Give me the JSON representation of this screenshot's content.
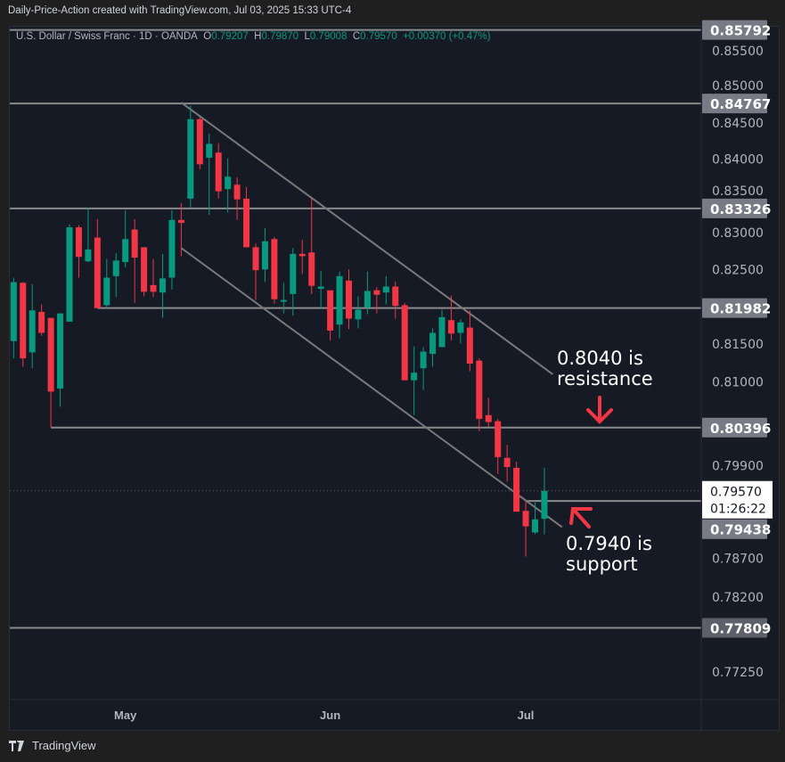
{
  "caption": "Daily-Price-Action created with TradingView.com, Jul 03, 2025 15:33 UTC-4",
  "legend": {
    "symbol": "U.S. Dollar / Swiss Franc · 1D · OANDA",
    "o_label": "O",
    "o": "0.79207",
    "h_label": "H",
    "h": "0.79870",
    "l_label": "L",
    "l": "0.79008",
    "c_label": "C",
    "c": "0.79570",
    "change": "+0.00370 (+0.47%)"
  },
  "footer": {
    "brand": "TradingView",
    "logo_icon": "tradingview-logo-icon"
  },
  "colors": {
    "up": "#089981",
    "down": "#f23645",
    "level_line": "#8a8a8a",
    "annotation_arrow": "#f23645",
    "background": "#161a25"
  },
  "chart_data": {
    "type": "candlestick",
    "title": "",
    "y_scale": "log",
    "ylim": [
      0.7705,
      0.8625
    ],
    "grid": false,
    "price_ticks": [
      "0.85500",
      "0.85000",
      "0.84500",
      "0.84000",
      "0.83500",
      "0.83000",
      "0.82500",
      "0.81500",
      "0.81000",
      "0.79900",
      "0.78700",
      "0.78200",
      "0.77250"
    ],
    "x_ticks": [
      {
        "label": "May",
        "index": 12
      },
      {
        "label": "Jun",
        "index": 34
      },
      {
        "label": "Jul",
        "index": 55
      }
    ],
    "candles": [
      [
        0.8154,
        0.8239,
        0.8131,
        0.8233
      ],
      [
        0.8232,
        0.8233,
        0.812,
        0.8131
      ],
      [
        0.8139,
        0.823,
        0.8118,
        0.8195
      ],
      [
        0.8193,
        0.8203,
        0.8161,
        0.8165
      ],
      [
        0.8185,
        0.8185,
        0.804,
        0.8087
      ],
      [
        0.8091,
        0.8191,
        0.8067,
        0.8191
      ],
      [
        0.818,
        0.8311,
        0.818,
        0.8307
      ],
      [
        0.8307,
        0.831,
        0.8239,
        0.8267
      ],
      [
        0.8261,
        0.8334,
        0.826,
        0.8277
      ],
      [
        0.8293,
        0.8318,
        0.8198,
        0.8198
      ],
      [
        0.8202,
        0.8264,
        0.8197,
        0.8239
      ],
      [
        0.8241,
        0.8272,
        0.8213,
        0.8262
      ],
      [
        0.826,
        0.833,
        0.8253,
        0.8291
      ],
      [
        0.8304,
        0.8318,
        0.8205,
        0.8266
      ],
      [
        0.828,
        0.828,
        0.8214,
        0.822
      ],
      [
        0.8229,
        0.8264,
        0.8213,
        0.822
      ],
      [
        0.8219,
        0.8271,
        0.8185,
        0.8238
      ],
      [
        0.8239,
        0.833,
        0.8223,
        0.8317
      ],
      [
        0.8317,
        0.834,
        0.8268,
        0.8313
      ],
      [
        0.8346,
        0.8474,
        0.8333,
        0.8455
      ],
      [
        0.8455,
        0.8458,
        0.8386,
        0.8393
      ],
      [
        0.8402,
        0.8435,
        0.8324,
        0.8421
      ],
      [
        0.8409,
        0.8422,
        0.8346,
        0.8356
      ],
      [
        0.8359,
        0.8401,
        0.8327,
        0.8376
      ],
      [
        0.8365,
        0.8375,
        0.8317,
        0.8345
      ],
      [
        0.8346,
        0.8362,
        0.828,
        0.828
      ],
      [
        0.828,
        0.8285,
        0.8209,
        0.8249
      ],
      [
        0.825,
        0.8306,
        0.8233,
        0.8288
      ],
      [
        0.8291,
        0.8294,
        0.8204,
        0.821
      ],
      [
        0.8208,
        0.8232,
        0.8191,
        0.8209
      ],
      [
        0.8217,
        0.8279,
        0.8188,
        0.8271
      ],
      [
        0.8271,
        0.829,
        0.8244,
        0.8268
      ],
      [
        0.8273,
        0.8346,
        0.8217,
        0.8228
      ],
      [
        0.8224,
        0.8248,
        0.8198,
        0.8227
      ],
      [
        0.8222,
        0.8222,
        0.8155,
        0.8168
      ],
      [
        0.8176,
        0.8247,
        0.8158,
        0.8241
      ],
      [
        0.8235,
        0.825,
        0.817,
        0.8184
      ],
      [
        0.8183,
        0.8214,
        0.8171,
        0.8196
      ],
      [
        0.8199,
        0.8247,
        0.819,
        0.8221
      ],
      [
        0.8222,
        0.8226,
        0.8191,
        0.8216
      ],
      [
        0.8219,
        0.8241,
        0.8203,
        0.8227
      ],
      [
        0.8227,
        0.8234,
        0.8184,
        0.8201
      ],
      [
        0.8202,
        0.8205,
        0.8102,
        0.8102
      ],
      [
        0.8102,
        0.8147,
        0.8056,
        0.8112
      ],
      [
        0.8118,
        0.8146,
        0.8089,
        0.814
      ],
      [
        0.8137,
        0.8171,
        0.812,
        0.8165
      ],
      [
        0.8146,
        0.8196,
        0.8146,
        0.8186
      ],
      [
        0.8182,
        0.8215,
        0.8155,
        0.8164
      ],
      [
        0.8165,
        0.8183,
        0.8151,
        0.8179
      ],
      [
        0.8172,
        0.8195,
        0.8114,
        0.8124
      ],
      [
        0.8128,
        0.8131,
        0.8035,
        0.8051
      ],
      [
        0.8056,
        0.8079,
        0.8041,
        0.8047
      ],
      [
        0.8048,
        0.8051,
        0.7979,
        0.8001
      ],
      [
        0.8,
        0.8017,
        0.7969,
        0.7988
      ],
      [
        0.7987,
        0.7995,
        0.793,
        0.793
      ],
      [
        0.7931,
        0.7943,
        0.7872,
        0.7911
      ],
      [
        0.7903,
        0.7942,
        0.7901,
        0.792
      ],
      [
        0.79207,
        0.7987,
        0.79008,
        0.7957
      ]
    ],
    "candle_fields": [
      "open",
      "high",
      "low",
      "close"
    ],
    "levels": [
      {
        "price": 0.85792,
        "label": "0.85792",
        "from_index": 0
      },
      {
        "price": 0.84767,
        "label": "0.84767",
        "from_index": 0
      },
      {
        "price": 0.83326,
        "label": "0.83326",
        "from_index": 0
      },
      {
        "price": 0.81982,
        "label": "0.81982",
        "from_index": 9
      },
      {
        "price": 0.80396,
        "label": "0.80396",
        "from_index": 4
      },
      {
        "price": 0.79438,
        "label": "0.79438",
        "from_index": 55
      },
      {
        "price": 0.77809,
        "label": "0.77809",
        "from_index": 0
      }
    ],
    "trendlines": [
      {
        "from": [
          18,
          0.8478
        ],
        "to": [
          57.9,
          0.811
        ]
      },
      {
        "from": [
          18,
          0.8279
        ],
        "to": [
          58.9,
          0.791
        ]
      }
    ],
    "last_price": {
      "price": 0.7957,
      "label": "0.79570",
      "countdown": "01:26:22"
    },
    "annotations": [
      {
        "text_line1": "0.8040 is",
        "text_line2": "resistance",
        "arrow": "down"
      },
      {
        "text_line1": "0.7940 is",
        "text_line2": "support",
        "arrow": "up-left"
      }
    ]
  }
}
